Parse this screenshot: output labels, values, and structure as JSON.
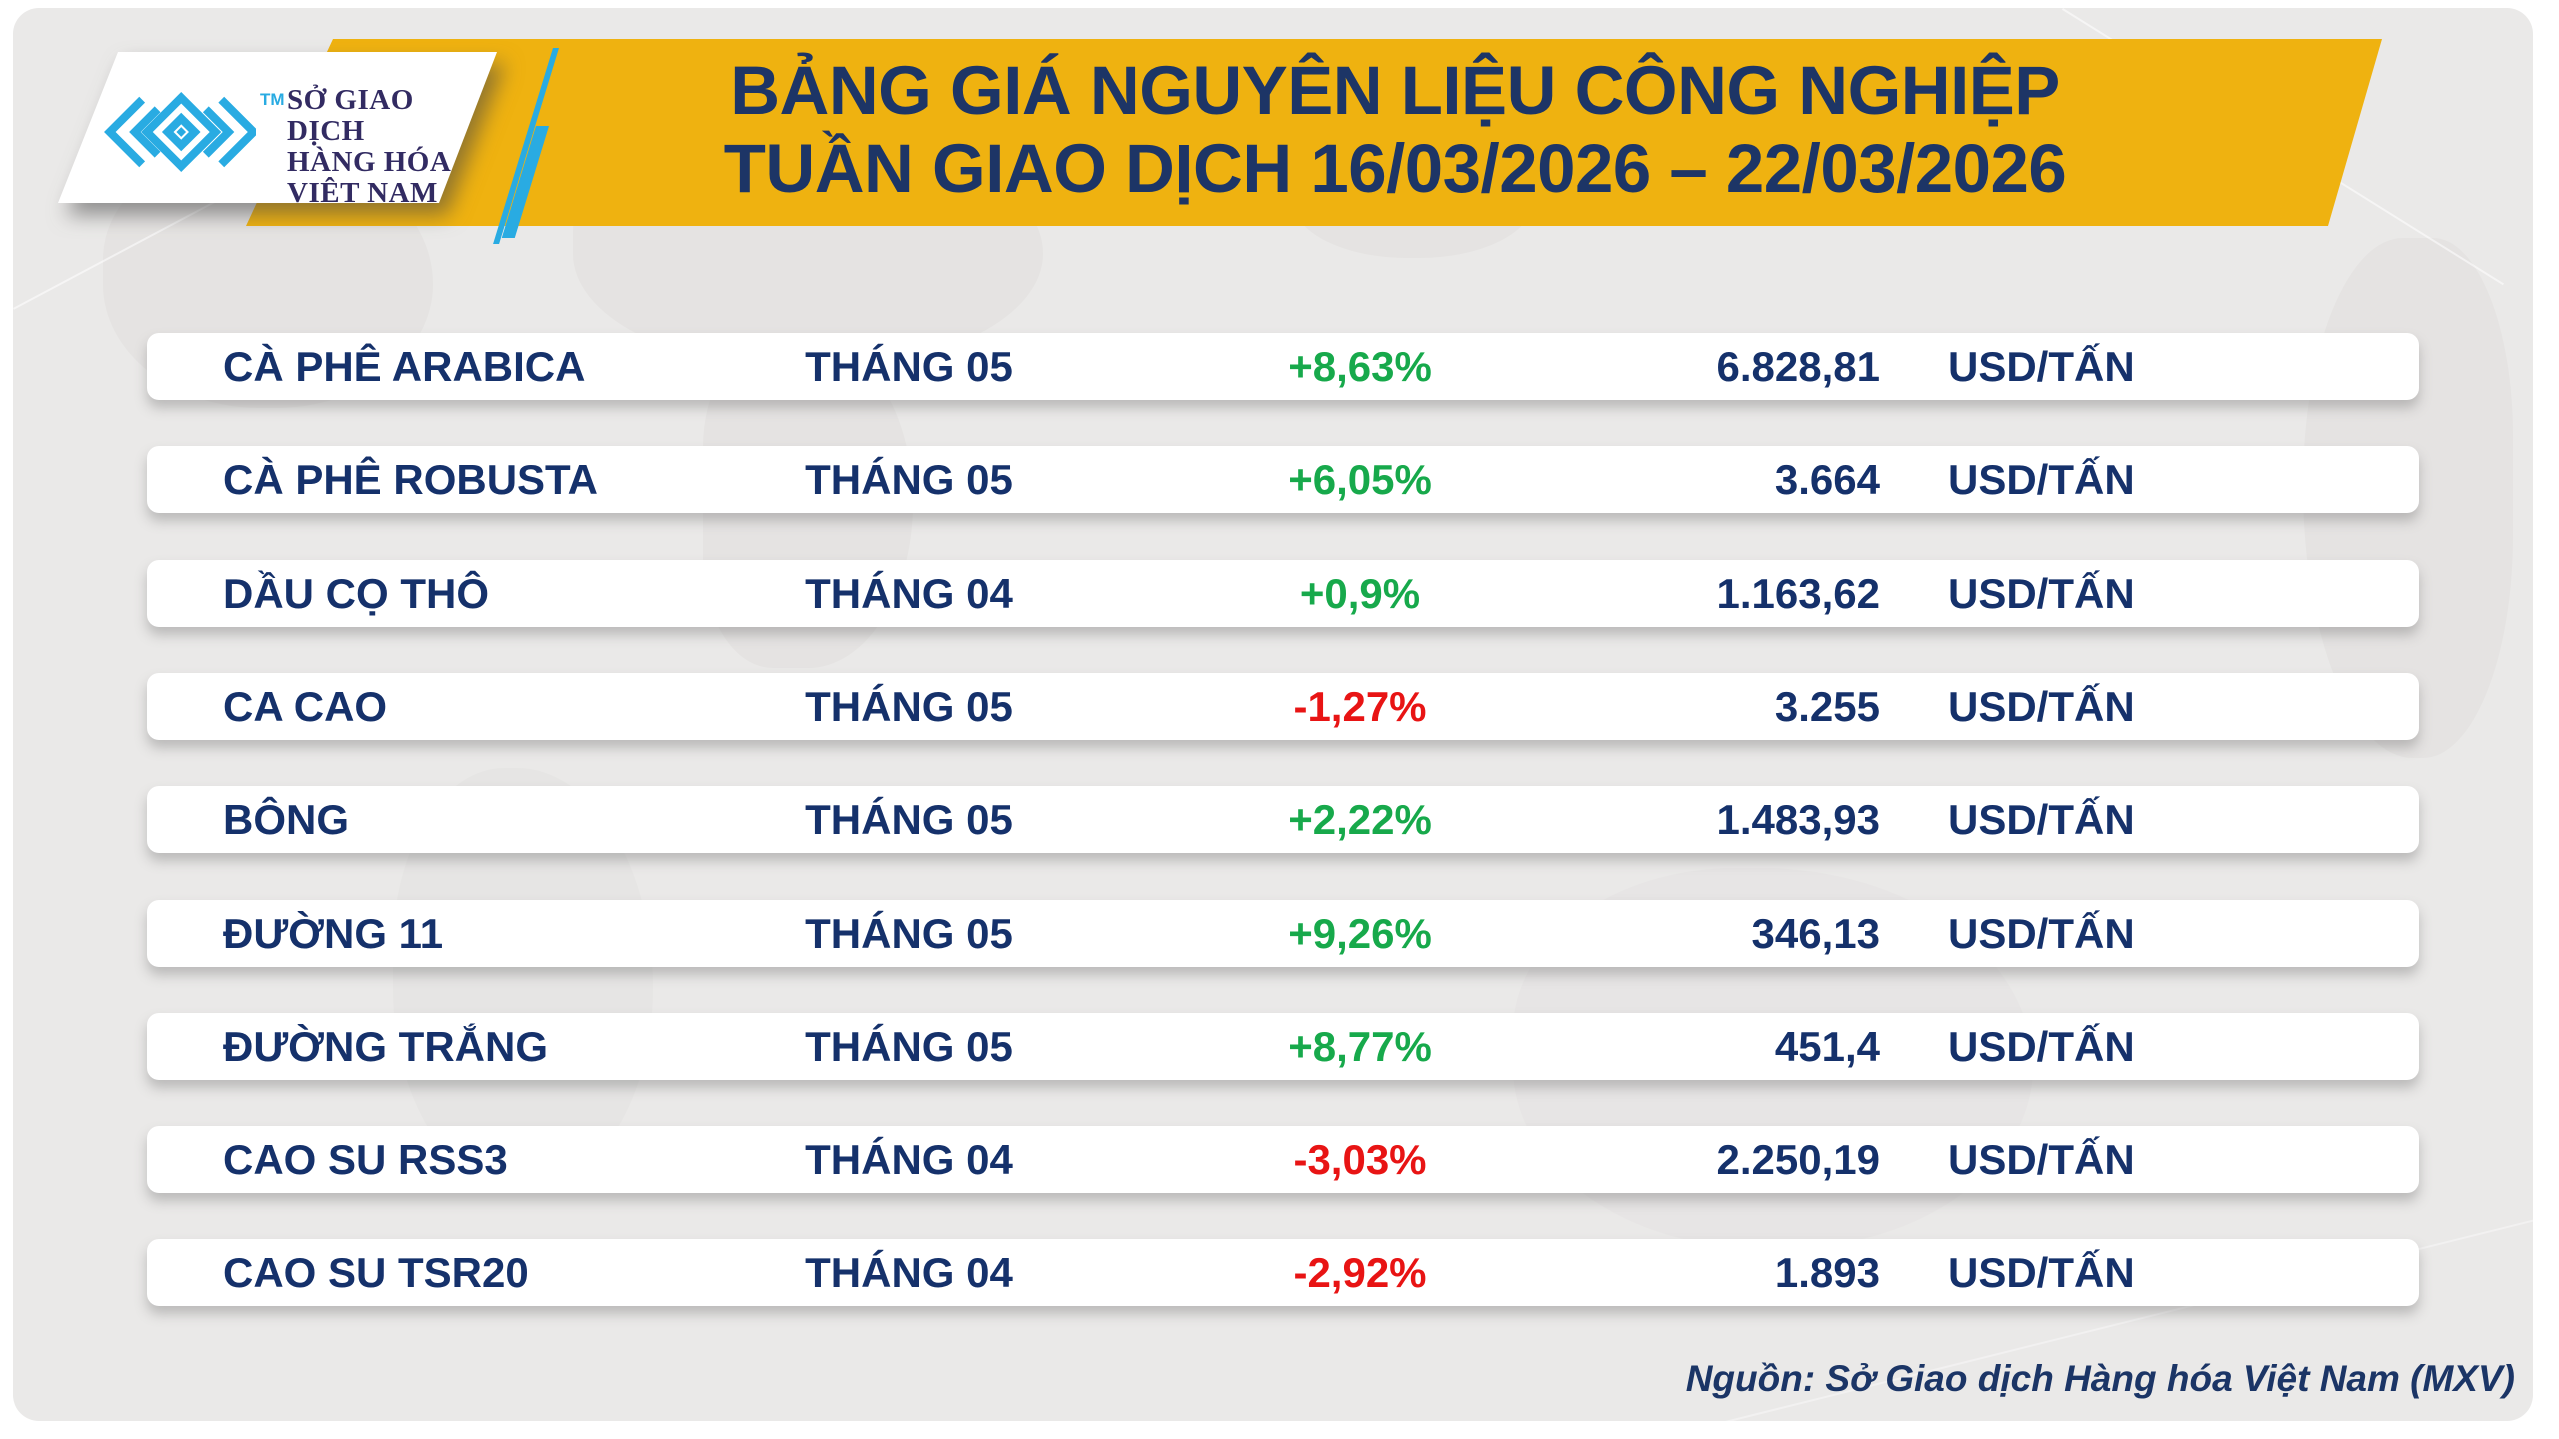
{
  "header": {
    "title_line1": "BẢNG GIÁ NGUYÊN LIỆU CÔNG NGHIỆP",
    "title_line2": "TUẦN GIAO DỊCH 16/03/2026 – 22/03/2026"
  },
  "logo": {
    "trademark": "TM",
    "org_lines": [
      "SỞ GIAO DỊCH",
      "HÀNG HÓA",
      "VIỆT NAM"
    ]
  },
  "meta": {
    "source_note": "Nguồn: Sở Giao dịch Hàng hóa Việt Nam (MXV)"
  },
  "colors": {
    "banner_yellow": "#efb210",
    "navy_text": "#15316b",
    "title_navy": "#1d3566",
    "up_green": "#17a94b",
    "down_red": "#e81414",
    "logo_cyan": "#29abe2",
    "card_gray": "#eae9e8"
  },
  "chart_data": {
    "type": "table",
    "title": "BẢNG GIÁ NGUYÊN LIỆU CÔNG NGHIỆP TUẦN GIAO DỊCH 16/03/2026 – 22/03/2026",
    "rows": [
      {
        "name": "CÀ PHÊ ARABICA",
        "month": "THÁNG 05",
        "change": "+8,63%",
        "trend": "up",
        "price": "6.828,81",
        "unit": "USD/TẤN"
      },
      {
        "name": "CÀ PHÊ ROBUSTA",
        "month": "THÁNG 05",
        "change": "+6,05%",
        "trend": "up",
        "price": "3.664",
        "unit": "USD/TẤN"
      },
      {
        "name": "DẦU CỌ THÔ",
        "month": "THÁNG 04",
        "change": "+0,9%",
        "trend": "up",
        "price": "1.163,62",
        "unit": "USD/TẤN"
      },
      {
        "name": "CA CAO",
        "month": "THÁNG 05",
        "change": "-1,27%",
        "trend": "down",
        "price": "3.255",
        "unit": "USD/TẤN"
      },
      {
        "name": "BÔNG",
        "month": "THÁNG 05",
        "change": "+2,22%",
        "trend": "up",
        "price": "1.483,93",
        "unit": "USD/TẤN"
      },
      {
        "name": "ĐƯỜNG 11",
        "month": "THÁNG 05",
        "change": "+9,26%",
        "trend": "up",
        "price": "346,13",
        "unit": "USD/TẤN"
      },
      {
        "name": "ĐƯỜNG TRẮNG",
        "month": "THÁNG 05",
        "change": "+8,77%",
        "trend": "up",
        "price": "451,4",
        "unit": "USD/TẤN"
      },
      {
        "name": "CAO SU RSS3",
        "month": "THÁNG 04",
        "change": "-3,03%",
        "trend": "down",
        "price": "2.250,19",
        "unit": "USD/TẤN"
      },
      {
        "name": "CAO SU TSR20",
        "month": "THÁNG 04",
        "change": "-2,92%",
        "trend": "down",
        "price": "1.893",
        "unit": "USD/TẤN"
      }
    ]
  }
}
